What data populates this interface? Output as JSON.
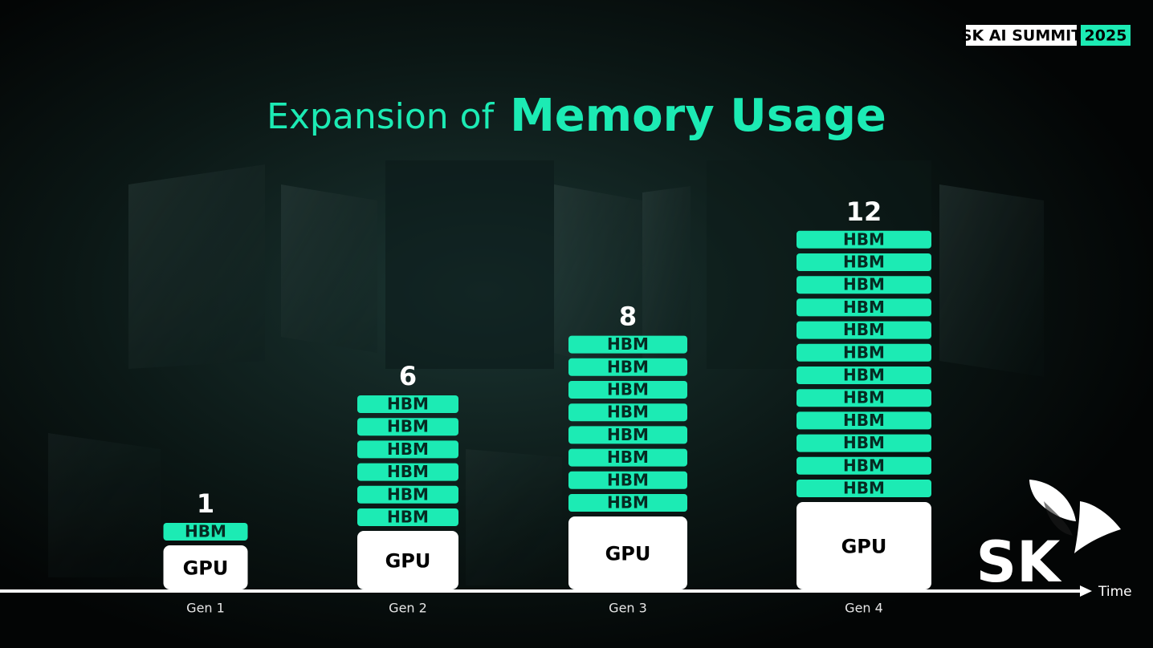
{
  "brand": {
    "name": "SK AI SUMMIT",
    "year": "2025"
  },
  "logo": "SK",
  "chart_data": {
    "type": "stack",
    "title_prefix": "Expansion of",
    "title_emphasis": "Memory Usage",
    "categories": [
      "Gen 1",
      "Gen 2",
      "Gen 3",
      "Gen 4"
    ],
    "values": [
      1,
      6,
      8,
      12
    ],
    "unit_label": "HBM",
    "base_label": "GPU",
    "x_axis_label": "Time",
    "color": "#1cebb4"
  }
}
